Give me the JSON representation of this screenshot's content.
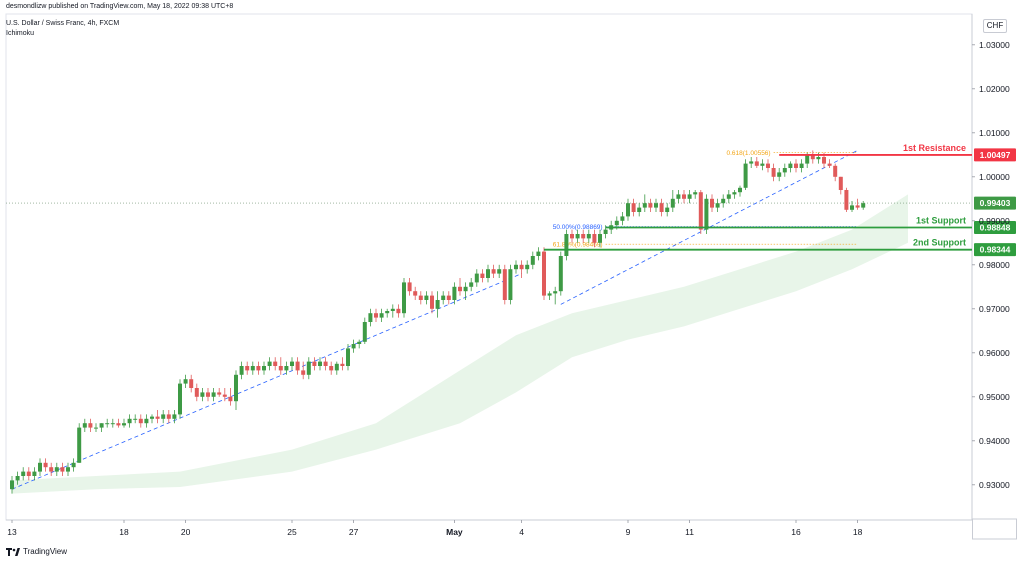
{
  "header": {
    "published": "desmondlizw published on TradingView.com, May 18, 2022 09:38 UTC+8",
    "symbol": "U.S. Dollar / Swiss Franc, 4h, FXCM",
    "indicator": "Ichimoku",
    "currency": "CHF"
  },
  "footer": {
    "brand": "TradingView"
  },
  "colors": {
    "bull": "#3e9a45",
    "bear": "#e05a5a",
    "resistance": "#f23645",
    "support": "#2e9d3e",
    "fib": "#f2a516",
    "fib50": "#2962ff",
    "cloud": "#e8f5e9"
  },
  "chart_data": {
    "type": "candlestick",
    "title": "U.S. Dollar / Swiss Franc, 4h, FXCM",
    "ylim": [
      0.922,
      1.037
    ],
    "y_ticks": [
      "1.03000",
      "1.02000",
      "1.01000",
      "1.00000",
      "0.99000",
      "0.98000",
      "0.97000",
      "0.96000",
      "0.95000",
      "0.94000",
      "0.93000"
    ],
    "y_tick_values": [
      1.03,
      1.02,
      1.01,
      1.0,
      0.99,
      0.98,
      0.97,
      0.96,
      0.95,
      0.94,
      0.93
    ],
    "x_ticks": [
      "13",
      "18",
      "20",
      "25",
      "27",
      "May",
      "4",
      "9",
      "11",
      "16",
      "18"
    ],
    "x_tick_index": [
      0,
      20,
      31,
      50,
      61,
      79,
      91,
      110,
      121,
      140,
      151
    ],
    "candles": [
      [
        0.929,
        0.932,
        0.928,
        0.931
      ],
      [
        0.931,
        0.933,
        0.93,
        0.932
      ],
      [
        0.932,
        0.934,
        0.931,
        0.933
      ],
      [
        0.933,
        0.934,
        0.931,
        0.932
      ],
      [
        0.932,
        0.934,
        0.931,
        0.933
      ],
      [
        0.933,
        0.936,
        0.932,
        0.935
      ],
      [
        0.935,
        0.936,
        0.933,
        0.934
      ],
      [
        0.934,
        0.935,
        0.932,
        0.933
      ],
      [
        0.933,
        0.935,
        0.932,
        0.934
      ],
      [
        0.934,
        0.935,
        0.932,
        0.933
      ],
      [
        0.933,
        0.935,
        0.932,
        0.934
      ],
      [
        0.934,
        0.936,
        0.933,
        0.935
      ],
      [
        0.935,
        0.944,
        0.935,
        0.943
      ],
      [
        0.943,
        0.945,
        0.942,
        0.944
      ],
      [
        0.944,
        0.945,
        0.942,
        0.943
      ],
      [
        0.943,
        0.944,
        0.942,
        0.943
      ],
      [
        0.943,
        0.944,
        0.942,
        0.944
      ],
      [
        0.944,
        0.945,
        0.943,
        0.944
      ],
      [
        0.944,
        0.945,
        0.943,
        0.944
      ],
      [
        0.944,
        0.945,
        0.943,
        0.9435
      ],
      [
        0.9435,
        0.945,
        0.943,
        0.944
      ],
      [
        0.944,
        0.946,
        0.943,
        0.945
      ],
      [
        0.945,
        0.946,
        0.944,
        0.945
      ],
      [
        0.945,
        0.946,
        0.943,
        0.944
      ],
      [
        0.944,
        0.946,
        0.943,
        0.945
      ],
      [
        0.945,
        0.946,
        0.944,
        0.9455
      ],
      [
        0.9455,
        0.947,
        0.944,
        0.945
      ],
      [
        0.945,
        0.947,
        0.944,
        0.946
      ],
      [
        0.946,
        0.947,
        0.944,
        0.945
      ],
      [
        0.945,
        0.947,
        0.944,
        0.946
      ],
      [
        0.946,
        0.954,
        0.945,
        0.953
      ],
      [
        0.953,
        0.955,
        0.952,
        0.954
      ],
      [
        0.954,
        0.955,
        0.951,
        0.952
      ],
      [
        0.952,
        0.953,
        0.949,
        0.95
      ],
      [
        0.95,
        0.952,
        0.949,
        0.951
      ],
      [
        0.951,
        0.952,
        0.949,
        0.95
      ],
      [
        0.95,
        0.952,
        0.949,
        0.951
      ],
      [
        0.951,
        0.952,
        0.95,
        0.9505
      ],
      [
        0.9505,
        0.952,
        0.949,
        0.95
      ],
      [
        0.95,
        0.952,
        0.948,
        0.949
      ],
      [
        0.949,
        0.956,
        0.947,
        0.955
      ],
      [
        0.955,
        0.958,
        0.954,
        0.957
      ],
      [
        0.957,
        0.958,
        0.955,
        0.956
      ],
      [
        0.956,
        0.958,
        0.955,
        0.957
      ],
      [
        0.957,
        0.958,
        0.955,
        0.956
      ],
      [
        0.956,
        0.958,
        0.955,
        0.957
      ],
      [
        0.957,
        0.959,
        0.956,
        0.958
      ],
      [
        0.958,
        0.959,
        0.956,
        0.957
      ],
      [
        0.957,
        0.959,
        0.955,
        0.956
      ],
      [
        0.956,
        0.958,
        0.955,
        0.957
      ],
      [
        0.957,
        0.959,
        0.956,
        0.958
      ],
      [
        0.958,
        0.959,
        0.955,
        0.956
      ],
      [
        0.956,
        0.958,
        0.954,
        0.955
      ],
      [
        0.955,
        0.959,
        0.954,
        0.958
      ],
      [
        0.958,
        0.959,
        0.956,
        0.957
      ],
      [
        0.957,
        0.959,
        0.956,
        0.958
      ],
      [
        0.958,
        0.959,
        0.956,
        0.957
      ],
      [
        0.957,
        0.958,
        0.955,
        0.956
      ],
      [
        0.956,
        0.958,
        0.955,
        0.9575
      ],
      [
        0.9575,
        0.959,
        0.956,
        0.957
      ],
      [
        0.957,
        0.962,
        0.956,
        0.961
      ],
      [
        0.961,
        0.963,
        0.96,
        0.962
      ],
      [
        0.962,
        0.963,
        0.961,
        0.9625
      ],
      [
        0.9625,
        0.968,
        0.962,
        0.967
      ],
      [
        0.967,
        0.97,
        0.966,
        0.969
      ],
      [
        0.969,
        0.97,
        0.967,
        0.968
      ],
      [
        0.968,
        0.97,
        0.967,
        0.969
      ],
      [
        0.969,
        0.97,
        0.968,
        0.9695
      ],
      [
        0.9695,
        0.971,
        0.968,
        0.97
      ],
      [
        0.97,
        0.971,
        0.968,
        0.969
      ],
      [
        0.969,
        0.977,
        0.968,
        0.976
      ],
      [
        0.976,
        0.977,
        0.973,
        0.974
      ],
      [
        0.974,
        0.975,
        0.972,
        0.973
      ],
      [
        0.973,
        0.974,
        0.971,
        0.972
      ],
      [
        0.972,
        0.974,
        0.971,
        0.973
      ],
      [
        0.973,
        0.974,
        0.969,
        0.97
      ],
      [
        0.97,
        0.974,
        0.968,
        0.972
      ],
      [
        0.972,
        0.974,
        0.971,
        0.973
      ],
      [
        0.973,
        0.974,
        0.971,
        0.972
      ],
      [
        0.972,
        0.976,
        0.971,
        0.975
      ],
      [
        0.975,
        0.977,
        0.973,
        0.974
      ],
      [
        0.974,
        0.976,
        0.972,
        0.975
      ],
      [
        0.975,
        0.977,
        0.974,
        0.976
      ],
      [
        0.976,
        0.979,
        0.975,
        0.978
      ],
      [
        0.978,
        0.979,
        0.976,
        0.977
      ],
      [
        0.977,
        0.98,
        0.976,
        0.979
      ],
      [
        0.979,
        0.98,
        0.977,
        0.978
      ],
      [
        0.978,
        0.98,
        0.977,
        0.979
      ],
      [
        0.979,
        0.98,
        0.971,
        0.972
      ],
      [
        0.972,
        0.98,
        0.971,
        0.979
      ],
      [
        0.979,
        0.981,
        0.978,
        0.98
      ],
      [
        0.98,
        0.981,
        0.977,
        0.979
      ],
      [
        0.979,
        0.981,
        0.978,
        0.98
      ],
      [
        0.98,
        0.983,
        0.979,
        0.982
      ],
      [
        0.982,
        0.984,
        0.981,
        0.983
      ],
      [
        0.983,
        0.984,
        0.972,
        0.973
      ],
      [
        0.973,
        0.974,
        0.972,
        0.9735
      ],
      [
        0.9735,
        0.975,
        0.971,
        0.974
      ],
      [
        0.974,
        0.983,
        0.973,
        0.982
      ],
      [
        0.982,
        0.988,
        0.981,
        0.987
      ],
      [
        0.987,
        0.988,
        0.985,
        0.986
      ],
      [
        0.986,
        0.988,
        0.985,
        0.987
      ],
      [
        0.987,
        0.988,
        0.985,
        0.986
      ],
      [
        0.986,
        0.988,
        0.985,
        0.987
      ],
      [
        0.987,
        0.988,
        0.984,
        0.985
      ],
      [
        0.985,
        0.988,
        0.984,
        0.987
      ],
      [
        0.987,
        0.989,
        0.986,
        0.988
      ],
      [
        0.988,
        0.99,
        0.987,
        0.989
      ],
      [
        0.989,
        0.991,
        0.988,
        0.99
      ],
      [
        0.99,
        0.992,
        0.989,
        0.991
      ],
      [
        0.991,
        0.995,
        0.99,
        0.994
      ],
      [
        0.994,
        0.995,
        0.991,
        0.992
      ],
      [
        0.992,
        0.994,
        0.991,
        0.993
      ],
      [
        0.993,
        0.996,
        0.992,
        0.994
      ],
      [
        0.994,
        0.995,
        0.992,
        0.993
      ],
      [
        0.993,
        0.995,
        0.992,
        0.994
      ],
      [
        0.994,
        0.995,
        0.991,
        0.992
      ],
      [
        0.992,
        0.994,
        0.991,
        0.993
      ],
      [
        0.993,
        0.997,
        0.992,
        0.995
      ],
      [
        0.995,
        0.997,
        0.994,
        0.996
      ],
      [
        0.996,
        0.997,
        0.994,
        0.995
      ],
      [
        0.995,
        0.997,
        0.994,
        0.996
      ],
      [
        0.996,
        0.997,
        0.995,
        0.9965
      ],
      [
        0.9965,
        0.997,
        0.987,
        0.988
      ],
      [
        0.988,
        0.996,
        0.987,
        0.995
      ],
      [
        0.995,
        0.996,
        0.992,
        0.993
      ],
      [
        0.993,
        0.995,
        0.992,
        0.994
      ],
      [
        0.994,
        0.996,
        0.993,
        0.995
      ],
      [
        0.995,
        0.997,
        0.994,
        0.996
      ],
      [
        0.996,
        0.997,
        0.995,
        0.9965
      ],
      [
        0.9965,
        0.998,
        0.9955,
        0.9975
      ],
      [
        0.9975,
        1.004,
        0.997,
        1.003
      ],
      [
        1.003,
        1.0045,
        1.002,
        1.0035
      ],
      [
        1.0035,
        1.0045,
        1.002,
        1.0025
      ],
      [
        1.0025,
        1.004,
        1.0015,
        1.003
      ],
      [
        1.003,
        1.004,
        1.001,
        1.002
      ],
      [
        1.002,
        1.003,
        0.999,
        1.0
      ],
      [
        1.0,
        1.002,
        0.999,
        1.001
      ],
      [
        1.001,
        1.003,
        1.0,
        1.002
      ],
      [
        1.002,
        1.0035,
        1.001,
        1.003
      ],
      [
        1.003,
        1.004,
        1.001,
        1.002
      ],
      [
        1.002,
        1.004,
        1.001,
        1.003
      ],
      [
        1.003,
        1.0055,
        1.002,
        1.005
      ],
      [
        1.005,
        1.006,
        1.003,
        1.004
      ],
      [
        1.004,
        1.0055,
        1.003,
        1.0045
      ],
      [
        1.0045,
        1.0055,
        1.002,
        1.003
      ],
      [
        1.003,
        1.004,
        1.002,
        1.0025
      ],
      [
        1.0025,
        1.003,
        0.999,
        1.0
      ],
      [
        1.0,
        1.0,
        0.996,
        0.997
      ],
      [
        0.997,
        0.9975,
        0.992,
        0.9925
      ],
      [
        0.9925,
        0.9945,
        0.992,
        0.9935
      ],
      [
        0.9935,
        0.995,
        0.9925,
        0.993
      ],
      [
        0.993,
        0.9945,
        0.9925,
        0.994
      ]
    ],
    "cloud_lower": [
      [
        0,
        0.928
      ],
      [
        15,
        0.929
      ],
      [
        30,
        0.9295
      ],
      [
        50,
        0.933
      ],
      [
        65,
        0.938
      ],
      [
        80,
        0.944
      ],
      [
        90,
        0.951
      ],
      [
        100,
        0.959
      ],
      [
        110,
        0.963
      ],
      [
        120,
        0.966
      ],
      [
        130,
        0.97
      ],
      [
        140,
        0.974
      ],
      [
        150,
        0.979
      ],
      [
        160,
        0.985
      ]
    ],
    "cloud_upper": [
      [
        0,
        0.931
      ],
      [
        15,
        0.932
      ],
      [
        30,
        0.933
      ],
      [
        50,
        0.938
      ],
      [
        65,
        0.944
      ],
      [
        80,
        0.956
      ],
      [
        90,
        0.964
      ],
      [
        100,
        0.969
      ],
      [
        110,
        0.972
      ],
      [
        120,
        0.975
      ],
      [
        130,
        0.979
      ],
      [
        140,
        0.983
      ],
      [
        150,
        0.988
      ],
      [
        160,
        0.996
      ]
    ],
    "trendlines": [
      {
        "from": [
          0,
          0.929
        ],
        "to": [
          91,
          0.978
        ]
      },
      {
        "from": [
          98,
          0.971
        ],
        "to": [
          151,
          1.006
        ]
      }
    ],
    "levels": [
      {
        "name": "1st Resistance",
        "value": 1.00497,
        "label": "1.00497",
        "kind": "resistance",
        "start": 137
      },
      {
        "name": "1st Support",
        "value": 0.98848,
        "label": "0.98848",
        "kind": "support",
        "start": 106
      },
      {
        "name": "2nd Support",
        "value": 0.98344,
        "label": "0.98344",
        "kind": "support",
        "start": 95
      }
    ],
    "fib_levels": [
      {
        "text": "0.618(1.00556)",
        "value": 1.00556,
        "start": 136,
        "end": 151,
        "color": "fib"
      },
      {
        "text": "50.00%(0.98869)",
        "value": 0.98869,
        "start": 106,
        "end": 151,
        "color": "fib50"
      },
      {
        "text": "61.80%(0.98469)",
        "value": 0.98469,
        "start": 106,
        "end": 151,
        "color": "fib"
      }
    ],
    "last_price": {
      "value": 0.99403,
      "label": "0.99403"
    }
  }
}
